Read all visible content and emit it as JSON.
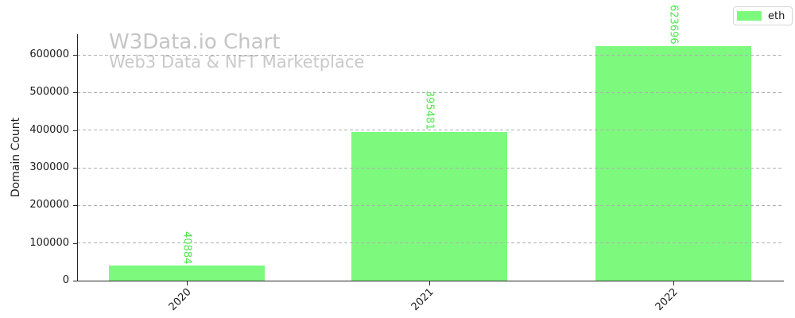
{
  "watermark": {
    "title": "W3Data.io Chart",
    "subtitle": "Web3 Data & NFT Marketplace",
    "color": "#c7c7c7"
  },
  "legend": {
    "position": "top-right",
    "items": [
      {
        "label": "eth",
        "color": "#7dfa7d"
      }
    ]
  },
  "chart_data": {
    "type": "bar",
    "title": "W3Data.io Chart",
    "subtitle": "Web3 Data & NFT Marketplace",
    "categories": [
      "2020",
      "2021",
      "2022"
    ],
    "series": [
      {
        "name": "eth",
        "color": "#7dfa7d",
        "values": [
          40884,
          395481,
          623696
        ]
      }
    ],
    "bar_labels": [
      "40884",
      "395481",
      "623696"
    ],
    "bar_label_rotation_deg": 90,
    "xlabel": "",
    "ylabel": "Domain Count",
    "ylim": [
      0,
      655000
    ],
    "yticks": [
      0,
      100000,
      200000,
      300000,
      400000,
      500000,
      600000
    ],
    "xtick_rotation_deg": 45,
    "grid": {
      "axis": "y",
      "style": "dashed",
      "color": "#b0b0b0",
      "drawn_above_bars": true
    },
    "legend_position": "upper right",
    "colors": {
      "bar": "#7dfa7d",
      "bar_label": "#4ee84e",
      "grid": "#b0b0b0",
      "axis": "#262626",
      "tick_text": "#1c1c1c",
      "watermark": "#c7c7c7"
    }
  }
}
